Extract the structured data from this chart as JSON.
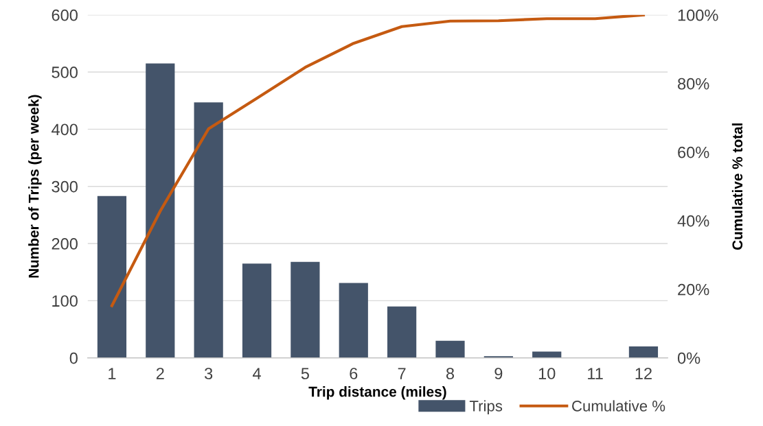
{
  "chart_data": {
    "type": "bar",
    "xlabel": "Trip distance (miles)",
    "ylabel": "Number of Trips (per week)",
    "y2label": "Cumulative % total",
    "categories": [
      "1",
      "2",
      "3",
      "4",
      "5",
      "6",
      "7",
      "8",
      "9",
      "10",
      "11",
      "12"
    ],
    "series": [
      {
        "name": "Trips",
        "color": "#44546a",
        "values": [
          283,
          515,
          447,
          165,
          168,
          131,
          90,
          30,
          3,
          11,
          0,
          20
        ]
      },
      {
        "name": "Cumulative %",
        "type": "line",
        "axis": "y2",
        "color": "#c55a11",
        "values": [
          15.2,
          42.8,
          66.8,
          75.7,
          84.7,
          91.7,
          96.6,
          98.2,
          98.3,
          98.9,
          98.9,
          100
        ]
      }
    ],
    "ylim": [
      0,
      600
    ],
    "yticks": [
      0,
      100,
      200,
      300,
      400,
      500,
      600
    ],
    "y2lim": [
      0,
      100
    ],
    "y2ticks": [
      {
        "value": 0,
        "label": "0%"
      },
      {
        "value": 20,
        "label": "20%"
      },
      {
        "value": 40,
        "label": "40%"
      },
      {
        "value": 60,
        "label": "60%"
      },
      {
        "value": 80,
        "label": "80%"
      },
      {
        "value": 100,
        "label": "100%"
      }
    ],
    "grid": "y",
    "legend": "bottom right",
    "marker": "none",
    "line_style": "solid"
  }
}
